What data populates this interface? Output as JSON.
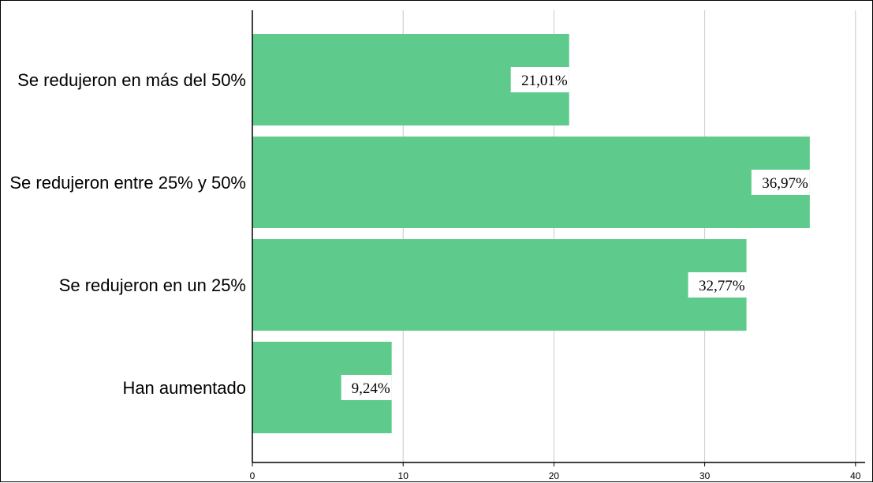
{
  "chart_data": {
    "type": "bar",
    "orientation": "horizontal",
    "categories": [
      "Se redujeron en más del 50%",
      "Se redujeron entre 25% y 50%",
      "Se redujeron en un 25%",
      "Han aumentado"
    ],
    "values": [
      21.01,
      36.97,
      32.77,
      9.24
    ],
    "data_labels": [
      "21,01%",
      "36,97%",
      "32,77%",
      "9,24%"
    ],
    "xticks": [
      0,
      10,
      20,
      30,
      40
    ],
    "xtick_labels": [
      "0",
      "10",
      "20",
      "30",
      "40"
    ],
    "xlim": [
      0,
      40
    ],
    "title": "",
    "xlabel": "",
    "ylabel": "",
    "grid": "vertical",
    "legend": "none",
    "colors": {
      "bar": "#5ecb8d",
      "grid": "#c8c8c8",
      "axis": "#000000",
      "label_bg": "#ffffff"
    }
  }
}
